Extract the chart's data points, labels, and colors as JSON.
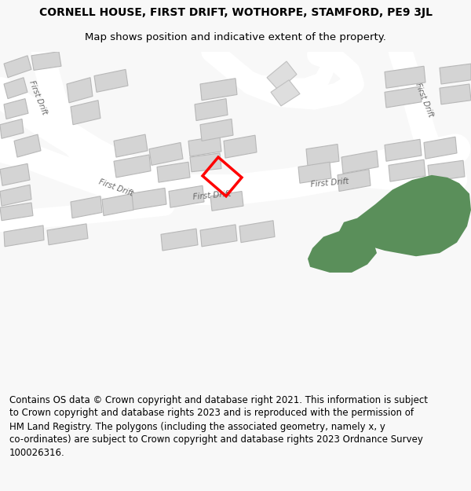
{
  "title": "CORNELL HOUSE, FIRST DRIFT, WOTHORPE, STAMFORD, PE9 3JL",
  "subtitle": "Map shows position and indicative extent of the property.",
  "footer": "Contains OS data © Crown copyright and database right 2021. This information is subject\nto Crown copyright and database rights 2023 and is reproduced with the permission of\nHM Land Registry. The polygons (including the associated geometry, namely x, y\nco-ordinates) are subject to Crown copyright and database rights 2023 Ordnance Survey\n100026316.",
  "bg_color": "#f8f8f8",
  "map_bg": "#f0eeee",
  "road_color": "#ffffff",
  "building_color": "#d4d4d4",
  "building_edge": "#b8b8b8",
  "highlight_color": "#ff0000",
  "green_color": "#5a8f5a",
  "title_fontsize": 10,
  "subtitle_fontsize": 9.5,
  "footer_fontsize": 8.5
}
